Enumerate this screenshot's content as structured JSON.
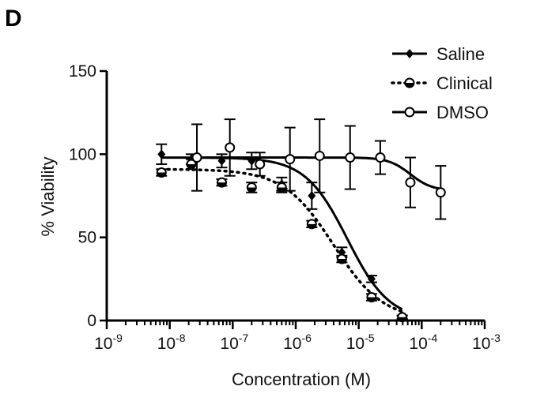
{
  "panel_label": "D",
  "chart_data": {
    "type": "scatter",
    "title": "",
    "xlabel": "Concentration (M)",
    "ylabel": "% Viability",
    "xscale": "log",
    "xlim_exp": [
      -9,
      -3
    ],
    "ylim": [
      0,
      150
    ],
    "x_ticks": [
      {
        "base": "10",
        "exp": "-9"
      },
      {
        "base": "10",
        "exp": "-8"
      },
      {
        "base": "10",
        "exp": "-7"
      },
      {
        "base": "10",
        "exp": "-6"
      },
      {
        "base": "10",
        "exp": "-5"
      },
      {
        "base": "10",
        "exp": "-4"
      },
      {
        "base": "10",
        "exp": "-3"
      }
    ],
    "y_ticks": [
      "0",
      "50",
      "100",
      "150"
    ],
    "y_tick_values": [
      0,
      50,
      100,
      150
    ],
    "grid": false,
    "legend_position": "top-right",
    "series": [
      {
        "name": "Saline",
        "marker": "diamond",
        "line": "solid",
        "curve": {
          "top": 98,
          "bottom": 0,
          "log_ic50": -5.18,
          "hill": 1.3
        },
        "points": [
          {
            "x": 7.4e-09,
            "y": 100,
            "err": 6
          },
          {
            "x": 2.2e-08,
            "y": 97,
            "err": 3
          },
          {
            "x": 6.7e-08,
            "y": 96,
            "err": 4
          },
          {
            "x": 2e-07,
            "y": 96,
            "err": 5
          },
          {
            "x": 6e-07,
            "y": 82,
            "err": 4
          },
          {
            "x": 1.8e-06,
            "y": 75,
            "err": 8
          },
          {
            "x": 5.4e-06,
            "y": 41,
            "err": 3
          },
          {
            "x": 1.6e-05,
            "y": 25,
            "err": 2
          },
          {
            "x": 4.9e-05,
            "y": 2,
            "err": 1
          }
        ]
      },
      {
        "name": "Clinical",
        "marker": "half-circle",
        "line": "dotted",
        "curve": {
          "top": 91,
          "bottom": 0,
          "log_ic50": -5.4,
          "hill": 1.1
        },
        "points": [
          {
            "x": 7.4e-09,
            "y": 89,
            "err": 2
          },
          {
            "x": 2.2e-08,
            "y": 94,
            "err": 3
          },
          {
            "x": 6.7e-08,
            "y": 83,
            "err": 2
          },
          {
            "x": 2e-07,
            "y": 80,
            "err": 3
          },
          {
            "x": 6e-07,
            "y": 80,
            "err": 3
          },
          {
            "x": 1.8e-06,
            "y": 58,
            "err": 2
          },
          {
            "x": 5.4e-06,
            "y": 37,
            "err": 2
          },
          {
            "x": 1.6e-05,
            "y": 14,
            "err": 2
          },
          {
            "x": 4.9e-05,
            "y": 2,
            "err": 1
          }
        ]
      },
      {
        "name": "DMSO",
        "marker": "open-circle",
        "line": "solid",
        "curve": {
          "top": 98,
          "bottom": 78,
          "log_ic50": -4.18,
          "hill": 2.5
        },
        "points": [
          {
            "x": 2.7e-08,
            "y": 98,
            "err": 20
          },
          {
            "x": 9e-08,
            "y": 104,
            "err": 17
          },
          {
            "x": 2.7e-07,
            "y": 94,
            "err": 7
          },
          {
            "x": 8.1e-07,
            "y": 97,
            "err": 19
          },
          {
            "x": 2.4e-06,
            "y": 99,
            "err": 22
          },
          {
            "x": 7.3e-06,
            "y": 98,
            "err": 19
          },
          {
            "x": 2.2e-05,
            "y": 98,
            "err": 10
          },
          {
            "x": 6.6e-05,
            "y": 83,
            "err": 15
          },
          {
            "x": 0.0002,
            "y": 77,
            "err": 16
          }
        ]
      }
    ]
  }
}
